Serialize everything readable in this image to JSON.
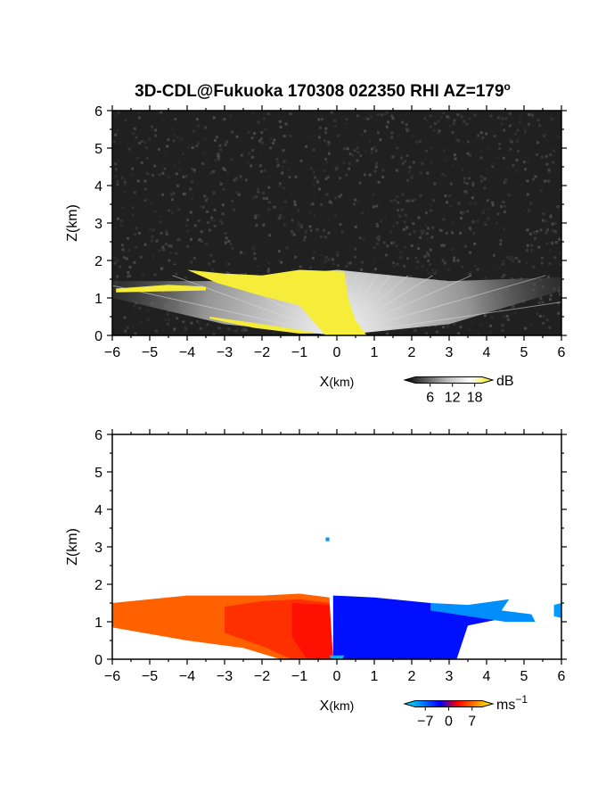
{
  "title": "3D-CDL@Fukuoka 170308 022350 RHI AZ=179",
  "title_superscript": "o",
  "chart_data": [
    {
      "type": "heatmap",
      "name": "intensity-panel",
      "xlabel_main": "X",
      "xlabel_unit": "(km)",
      "ylabel": "Z(km)",
      "xlim": [
        -6,
        6
      ],
      "ylim": [
        0,
        6
      ],
      "x_ticks": [
        "−6",
        "−5",
        "−4",
        "−3",
        "−2",
        "−1",
        "0",
        "1",
        "2",
        "3",
        "4",
        "5",
        "6"
      ],
      "y_ticks": [
        "0",
        "1",
        "2",
        "3",
        "4",
        "5",
        "6"
      ],
      "background": "noise",
      "colorbar": {
        "unit": "dB",
        "ticks": [
          {
            "label": "6",
            "value": 6
          },
          {
            "label": "12",
            "value": 12
          },
          {
            "label": "18",
            "value": 18
          }
        ],
        "range": [
          2,
          20
        ],
        "colors": [
          "#000000",
          "#606060",
          "#c0c0c0",
          "#ffffff",
          "#f2e800"
        ]
      },
      "regions": [
        {
          "kind": "fan",
          "x": 0,
          "z": 0,
          "value": 11,
          "max_x": 6,
          "max_z": 1.5
        },
        {
          "kind": "polygon",
          "value": 19,
          "points": [
            [
              -0.3,
              0
            ],
            [
              -1,
              0.8
            ],
            [
              -2,
              1.05
            ],
            [
              -3.2,
              1.4
            ],
            [
              -4,
              1.75
            ],
            [
              -3,
              1.65
            ],
            [
              -2,
              1.6
            ],
            [
              -1,
              1.75
            ],
            [
              0.2,
              1.7
            ],
            [
              0.3,
              1.0
            ],
            [
              0.5,
              0.4
            ],
            [
              0.8,
              0
            ]
          ]
        },
        {
          "kind": "polygon",
          "value": 19,
          "points": [
            [
              -5.9,
              1.25
            ],
            [
              -4.5,
              1.35
            ],
            [
              -3.5,
              1.3
            ],
            [
              -3.5,
              1.2
            ],
            [
              -5.9,
              1.15
            ]
          ]
        },
        {
          "kind": "polygon",
          "value": 19,
          "points": [
            [
              -3.4,
              0.5
            ],
            [
              -2,
              0.3
            ],
            [
              -1,
              0.15
            ],
            [
              -0.5,
              0.05
            ],
            [
              -1,
              0.05
            ],
            [
              -2.2,
              0.2
            ],
            [
              -3.4,
              0.45
            ]
          ]
        }
      ]
    },
    {
      "type": "heatmap",
      "name": "velocity-panel",
      "xlabel_main": "X",
      "xlabel_unit": "(km)",
      "ylabel": "Z(km)",
      "xlim": [
        -6,
        6
      ],
      "ylim": [
        0,
        6
      ],
      "x_ticks": [
        "−6",
        "−5",
        "−4",
        "−3",
        "−2",
        "−1",
        "0",
        "1",
        "2",
        "3",
        "4",
        "5",
        "6"
      ],
      "y_ticks": [
        "0",
        "1",
        "2",
        "3",
        "4",
        "5",
        "6"
      ],
      "background": "white",
      "colorbar": {
        "unit": "ms",
        "unit_superscript": "−1",
        "ticks": [
          {
            "label": "−7",
            "value": -7
          },
          {
            "label": "0",
            "value": 0
          },
          {
            "label": "7",
            "value": 7
          }
        ],
        "range": [
          -10,
          10
        ],
        "colors": [
          "#00f0f0",
          "#0080ff",
          "#0000ff",
          "#ff0000",
          "#ff8000",
          "#ffff00"
        ]
      },
      "regions": [
        {
          "kind": "polygon",
          "value": 5,
          "points": [
            [
              -6,
              1.5
            ],
            [
              -4,
              1.7
            ],
            [
              -2,
              1.7
            ],
            [
              -1,
              1.75
            ],
            [
              -0.2,
              1.65
            ],
            [
              -0.1,
              0
            ],
            [
              -1.5,
              0
            ],
            [
              -2.5,
              0.3
            ],
            [
              -4,
              0.5
            ],
            [
              -6,
              0.85
            ]
          ]
        },
        {
          "kind": "polygon",
          "value": 3.5,
          "points": [
            [
              -3,
              1.4
            ],
            [
              -2,
              1.55
            ],
            [
              -1,
              1.6
            ],
            [
              -0.2,
              1.5
            ],
            [
              -0.1,
              0
            ],
            [
              -1.2,
              0
            ],
            [
              -2,
              0.35
            ],
            [
              -3,
              0.7
            ]
          ]
        },
        {
          "kind": "polygon",
          "value": 2.5,
          "points": [
            [
              -1.2,
              1.5
            ],
            [
              -0.2,
              1.45
            ],
            [
              -0.1,
              0
            ],
            [
              -0.8,
              0
            ],
            [
              -1.2,
              0.6
            ]
          ]
        },
        {
          "kind": "polygon",
          "value": -2.5,
          "points": [
            [
              -0.1,
              1.7
            ],
            [
              1,
              1.65
            ],
            [
              2.5,
              1.5
            ],
            [
              3.5,
              1.3
            ],
            [
              4.5,
              1.1
            ],
            [
              3.5,
              0.9
            ],
            [
              3.2,
              0
            ],
            [
              -0.1,
              0
            ]
          ]
        },
        {
          "kind": "polygon",
          "value": -6.5,
          "points": [
            [
              2.5,
              1.5
            ],
            [
              3.5,
              1.45
            ],
            [
              4.6,
              1.6
            ],
            [
              4.4,
              1.3
            ],
            [
              5.2,
              1.2
            ],
            [
              5.3,
              1.0
            ],
            [
              4.5,
              1.0
            ],
            [
              3.5,
              1.15
            ],
            [
              2.5,
              1.3
            ]
          ]
        },
        {
          "kind": "polygon",
          "value": -8,
          "points": [
            [
              -0.2,
              0.1
            ],
            [
              0.2,
              0.1
            ],
            [
              0.15,
              0
            ],
            [
              -0.15,
              0
            ]
          ]
        },
        {
          "kind": "polygon",
          "value": -7,
          "points": [
            [
              5.8,
              1.45
            ],
            [
              6,
              1.5
            ],
            [
              6,
              1.1
            ],
            [
              5.8,
              1.15
            ]
          ]
        },
        {
          "kind": "polygon",
          "value": -7,
          "points": [
            [
              -0.3,
              3.25
            ],
            [
              -0.2,
              3.25
            ],
            [
              -0.2,
              3.15
            ],
            [
              -0.3,
              3.15
            ]
          ]
        }
      ]
    }
  ]
}
